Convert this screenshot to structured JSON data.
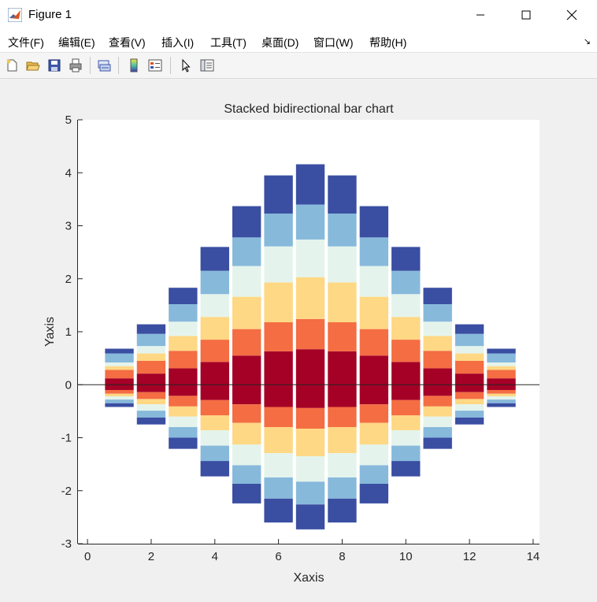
{
  "window": {
    "title": "Figure 1"
  },
  "menu": {
    "items": [
      "文件(F)",
      "编辑(E)",
      "查看(V)",
      "插入(I)",
      "工具(T)",
      "桌面(D)",
      "窗口(W)",
      "帮助(H)"
    ]
  },
  "toolbar": {
    "icons": [
      "new-figure-icon",
      "open-file-icon",
      "save-icon",
      "print-icon",
      "link-plot-icon",
      "colorbar-icon",
      "legend-icon",
      "pointer-icon",
      "property-editor-icon"
    ]
  },
  "chart_data": {
    "type": "bar",
    "subtype": "stacked-bidirectional",
    "title": "Stacked bidirectional bar chart",
    "xlabel": "Xaxis",
    "ylabel": "Yaxis",
    "xlim": [
      -0.3,
      14.2
    ],
    "ylim": [
      -3,
      5
    ],
    "xticks": [
      0,
      2,
      4,
      6,
      8,
      10,
      12,
      14
    ],
    "yticks": [
      -3,
      -2,
      -1,
      0,
      1,
      2,
      3,
      4,
      5
    ],
    "grid": false,
    "bar_width": 0.9,
    "colors": [
      "#a50026",
      "#f46d43",
      "#fed884",
      "#e4f4ec",
      "#87b9db",
      "#3a4ea2"
    ],
    "x": [
      1,
      2,
      3,
      4,
      5,
      6,
      7,
      8,
      9,
      10,
      11,
      12,
      13
    ],
    "positive_series": [
      {
        "values": [
          0.12,
          0.21,
          0.31,
          0.43,
          0.55,
          0.63,
          0.67,
          0.63,
          0.55,
          0.43,
          0.31,
          0.21,
          0.12
        ]
      },
      {
        "values": [
          0.16,
          0.24,
          0.33,
          0.42,
          0.5,
          0.55,
          0.57,
          0.55,
          0.5,
          0.42,
          0.33,
          0.24,
          0.16
        ]
      },
      {
        "values": [
          0.07,
          0.14,
          0.28,
          0.43,
          0.61,
          0.75,
          0.79,
          0.75,
          0.61,
          0.43,
          0.28,
          0.14,
          0.07
        ]
      },
      {
        "values": [
          0.07,
          0.14,
          0.27,
          0.43,
          0.58,
          0.68,
          0.71,
          0.68,
          0.58,
          0.43,
          0.27,
          0.14,
          0.07
        ]
      },
      {
        "values": [
          0.17,
          0.23,
          0.33,
          0.44,
          0.54,
          0.62,
          0.66,
          0.62,
          0.54,
          0.44,
          0.33,
          0.23,
          0.17
        ]
      },
      {
        "values": [
          0.09,
          0.18,
          0.31,
          0.45,
          0.59,
          0.72,
          0.76,
          0.72,
          0.59,
          0.45,
          0.31,
          0.18,
          0.09
        ]
      }
    ],
    "negative_series": [
      {
        "values": [
          -0.1,
          -0.14,
          -0.21,
          -0.29,
          -0.37,
          -0.42,
          -0.44,
          -0.42,
          -0.37,
          -0.29,
          -0.21,
          -0.14,
          -0.1
        ]
      },
      {
        "values": [
          -0.07,
          -0.13,
          -0.2,
          -0.29,
          -0.35,
          -0.38,
          -0.39,
          -0.38,
          -0.35,
          -0.29,
          -0.2,
          -0.13,
          -0.07
        ]
      },
      {
        "values": [
          -0.05,
          -0.1,
          -0.19,
          -0.28,
          -0.41,
          -0.49,
          -0.52,
          -0.49,
          -0.41,
          -0.28,
          -0.19,
          -0.1,
          -0.05
        ]
      },
      {
        "values": [
          -0.06,
          -0.12,
          -0.2,
          -0.29,
          -0.39,
          -0.46,
          -0.48,
          -0.46,
          -0.39,
          -0.29,
          -0.2,
          -0.12,
          -0.06
        ]
      },
      {
        "values": [
          -0.07,
          -0.13,
          -0.2,
          -0.29,
          -0.35,
          -0.4,
          -0.43,
          -0.4,
          -0.35,
          -0.29,
          -0.2,
          -0.13,
          -0.07
        ]
      },
      {
        "values": [
          -0.07,
          -0.13,
          -0.21,
          -0.29,
          -0.37,
          -0.45,
          -0.47,
          -0.45,
          -0.37,
          -0.29,
          -0.21,
          -0.13,
          -0.07
        ]
      }
    ]
  }
}
